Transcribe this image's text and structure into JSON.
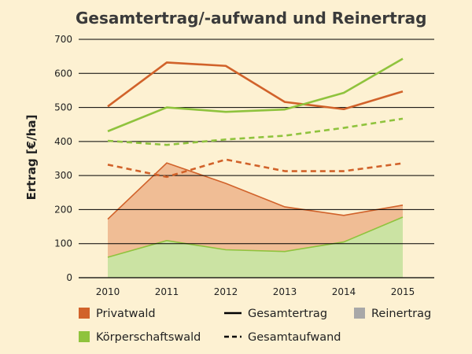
{
  "chart_data": {
    "type": "line",
    "title": "Gesamtertrag/-aufwand und Reinertrag",
    "ylabel": "Ertrag [€/ha]",
    "xlabel": "",
    "categories": [
      "2010",
      "2011",
      "2012",
      "2013",
      "2014",
      "2015"
    ],
    "ylim": [
      0,
      700
    ],
    "yticks": [
      0,
      100,
      200,
      300,
      400,
      500,
      600,
      700
    ],
    "grid": true,
    "colors": {
      "privatwald": "#d1622a",
      "koerperschaftswald": "#8fc33d",
      "privatwald_fill": "#f0bd95",
      "koerperschaftswald_fill": "#cbe3a3",
      "reinertrag": "#a8a8a8",
      "plot_bg": "#fdf1d2",
      "grid": "#000000"
    },
    "series": [
      {
        "name": "Privatwald Gesamtertrag",
        "owner": "Privatwald",
        "kind": "Gesamtertrag",
        "style": "solid",
        "values": [
          503,
          632,
          622,
          516,
          495,
          547
        ]
      },
      {
        "name": "Körperschaftswald Gesamtertrag",
        "owner": "Körperschaftswald",
        "kind": "Gesamtertrag",
        "style": "solid",
        "values": [
          430,
          500,
          487,
          494,
          543,
          643
        ]
      },
      {
        "name": "Körperschaftswald Gesamtaufwand",
        "owner": "Körperschaftswald",
        "kind": "Gesamtaufwand",
        "style": "dashed",
        "values": [
          402,
          390,
          406,
          417,
          440,
          467
        ]
      },
      {
        "name": "Privatwald Gesamtaufwand",
        "owner": "Privatwald",
        "kind": "Gesamtaufwand",
        "style": "dashed",
        "values": [
          332,
          296,
          347,
          313,
          313,
          336
        ]
      },
      {
        "name": "Privatwald Reinertrag",
        "owner": "Privatwald",
        "kind": "Reinertrag",
        "style": "area",
        "values": [
          172,
          337,
          277,
          208,
          183,
          213
        ]
      },
      {
        "name": "Körperschaftswald Reinertrag",
        "owner": "Körperschaftswald",
        "kind": "Reinertrag",
        "style": "area",
        "values": [
          60,
          109,
          82,
          77,
          105,
          178
        ]
      }
    ],
    "legend": {
      "placement": "bottom",
      "items": [
        {
          "label": "Privatwald",
          "swatch": "square",
          "color": "#d1622a"
        },
        {
          "label": "Gesamtertrag",
          "swatch": "solid-line",
          "color": "#000000"
        },
        {
          "label": "Reinertrag",
          "swatch": "square",
          "color": "#a8a8a8"
        },
        {
          "label": "Körperschaftswald",
          "swatch": "square",
          "color": "#8fc33d"
        },
        {
          "label": "Gesamtaufwand",
          "swatch": "dashed-line",
          "color": "#000000"
        }
      ]
    }
  }
}
